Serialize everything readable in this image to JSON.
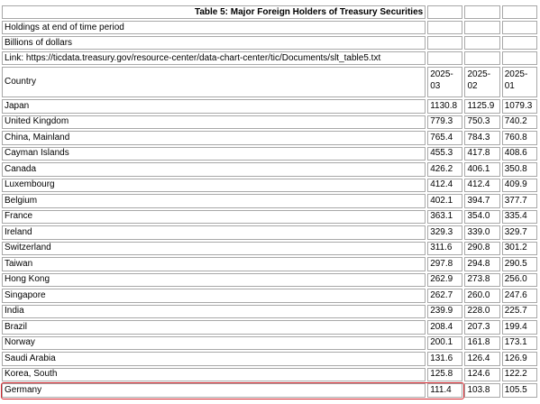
{
  "table": {
    "title": "Table 5: Major Foreign Holders of Treasury Securities",
    "notes": [
      "Holdings at end of time period",
      "Billions of dollars",
      "Link: https://ticdata.treasury.gov/resource-center/data-chart-center/tic/Documents/slt_table5.txt"
    ],
    "header": {
      "country": "Country",
      "periods": [
        [
          "2025-",
          "03"
        ],
        [
          "2025-",
          "02"
        ],
        [
          "2025-",
          "01"
        ]
      ]
    },
    "rows": [
      {
        "country": "Japan",
        "values": [
          "1130.8",
          "1125.9",
          "1079.3"
        ]
      },
      {
        "country": "United Kingdom",
        "values": [
          "779.3",
          "750.3",
          "740.2"
        ]
      },
      {
        "country": "China, Mainland",
        "values": [
          "765.4",
          "784.3",
          "760.8"
        ]
      },
      {
        "country": "Cayman Islands",
        "values": [
          "455.3",
          "417.8",
          "408.6"
        ]
      },
      {
        "country": "Canada",
        "values": [
          "426.2",
          "406.1",
          "350.8"
        ]
      },
      {
        "country": "Luxembourg",
        "values": [
          "412.4",
          "412.4",
          "409.9"
        ]
      },
      {
        "country": "Belgium",
        "values": [
          "402.1",
          "394.7",
          "377.7"
        ]
      },
      {
        "country": "France",
        "values": [
          "363.1",
          "354.0",
          "335.4"
        ]
      },
      {
        "country": "Ireland",
        "values": [
          "329.3",
          "339.0",
          "329.7"
        ]
      },
      {
        "country": "Switzerland",
        "values": [
          "311.6",
          "290.8",
          "301.2"
        ]
      },
      {
        "country": "Taiwan",
        "values": [
          "297.8",
          "294.8",
          "290.5"
        ]
      },
      {
        "country": "Hong Kong",
        "values": [
          "262.9",
          "273.8",
          "256.0"
        ]
      },
      {
        "country": "Singapore",
        "values": [
          "262.7",
          "260.0",
          "247.6"
        ]
      },
      {
        "country": "India",
        "values": [
          "239.9",
          "228.0",
          "225.7"
        ]
      },
      {
        "country": "Brazil",
        "values": [
          "208.4",
          "207.3",
          "199.4"
        ]
      },
      {
        "country": "Norway",
        "values": [
          "200.1",
          "161.8",
          "173.1"
        ]
      },
      {
        "country": "Saudi Arabia",
        "values": [
          "131.6",
          "126.4",
          "126.9"
        ]
      },
      {
        "country": "Korea, South",
        "values": [
          "125.8",
          "124.6",
          "122.2"
        ]
      },
      {
        "country": "Germany",
        "values": [
          "111.4",
          "103.8",
          "105.5"
        ]
      }
    ]
  },
  "colors": {
    "highlight": "#d3242c",
    "border": "#a8a8a8"
  }
}
